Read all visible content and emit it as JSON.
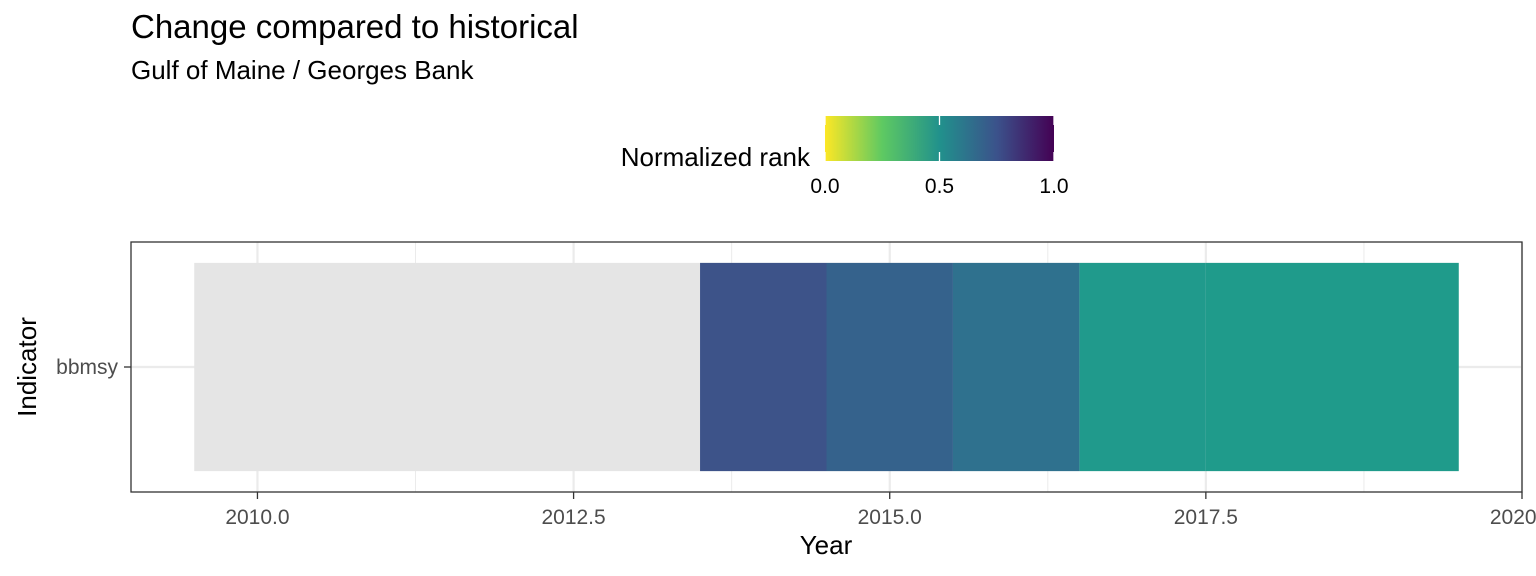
{
  "chart_data": {
    "type": "heatmap",
    "title": "Change compared to historical",
    "subtitle": "Gulf of Maine / Georges Bank",
    "xlabel": "Year",
    "ylabel": "Indicator",
    "xlim": [
      2009,
      2020
    ],
    "x_ticks": [
      "2010.0",
      "2012.5",
      "2015.0",
      "2017.5",
      "2020.0"
    ],
    "y_categories": [
      "bbmsy"
    ],
    "legend": {
      "title": "Normalized rank",
      "placement": "top",
      "ticks": [
        "0.0",
        "0.5",
        "1.0"
      ],
      "colors": [
        "#fde725",
        "#5ec962",
        "#21918c",
        "#3b528b",
        "#440154"
      ]
    },
    "missing_color": "#e5e5e5",
    "cells": [
      {
        "indicator": "bbmsy",
        "x_start": 2009.5,
        "x_end": 2013.5,
        "rank": null
      },
      {
        "indicator": "bbmsy",
        "x_start": 2013.5,
        "x_end": 2014.5,
        "rank": 0.75,
        "color": "#3d5389"
      },
      {
        "indicator": "bbmsy",
        "x_start": 2014.5,
        "x_end": 2015.5,
        "rank": 0.67,
        "color": "#35628c"
      },
      {
        "indicator": "bbmsy",
        "x_start": 2015.5,
        "x_end": 2016.5,
        "rank": 0.6,
        "color": "#2f718e"
      },
      {
        "indicator": "bbmsy",
        "x_start": 2016.5,
        "x_end": 2017.5,
        "rank": 0.5,
        "color": "#209a8c"
      },
      {
        "indicator": "bbmsy",
        "x_start": 2017.5,
        "x_end": 2019.5,
        "rank": 0.5,
        "color": "#1f9b8b"
      }
    ]
  }
}
